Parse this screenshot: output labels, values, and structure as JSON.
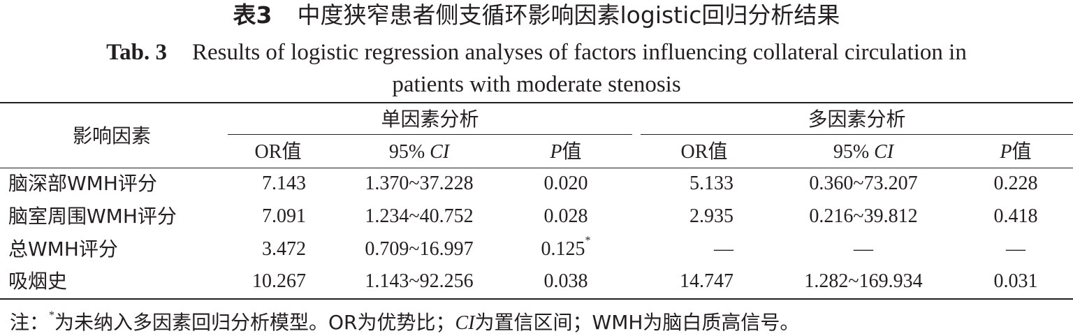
{
  "caption_zh": {
    "label": "表3",
    "text": "中度狭窄患者侧支循环影响因素logistic回归分析结果"
  },
  "caption_en": {
    "label": "Tab. 3",
    "line1": "Results of logistic regression analyses of factors influencing collateral circulation in",
    "line2": "patients with moderate stenosis"
  },
  "header": {
    "factor": "影响因素",
    "univariate": "单因素分析",
    "multivariate": "多因素分析",
    "or": "OR值",
    "ci_prefix": "95% ",
    "ci": "CI",
    "p": "P",
    "p_suffix": "值"
  },
  "rows": [
    {
      "factor": "脑深部WMH评分",
      "u_or": "7.143",
      "u_ci": "1.370~37.228",
      "u_p": "0.020",
      "u_p_mark": "",
      "m_or": "5.133",
      "m_ci": "0.360~73.207",
      "m_p": "0.228"
    },
    {
      "factor": "脑室周围WMH评分",
      "u_or": "7.091",
      "u_ci": "1.234~40.752",
      "u_p": "0.028",
      "u_p_mark": "",
      "m_or": "2.935",
      "m_ci": "0.216~39.812",
      "m_p": "0.418"
    },
    {
      "factor": "总WMH评分",
      "u_or": "3.472",
      "u_ci": "0.709~16.997",
      "u_p": "0.125",
      "u_p_mark": "*",
      "m_or": "—",
      "m_ci": "—",
      "m_p": "—"
    },
    {
      "factor": "吸烟史",
      "u_or": "10.267",
      "u_ci": "1.143~92.256",
      "u_p": "0.038",
      "u_p_mark": "",
      "m_or": "14.747",
      "m_ci": "1.282~169.934",
      "m_p": "0.031"
    }
  ],
  "note": {
    "prefix": "注：",
    "star": "*",
    "text1": "为未纳入多因素回归分析模型。OR为优势比；",
    "ci": "CI",
    "text2": "为置信区间；WMH为脑白质高信号。"
  }
}
